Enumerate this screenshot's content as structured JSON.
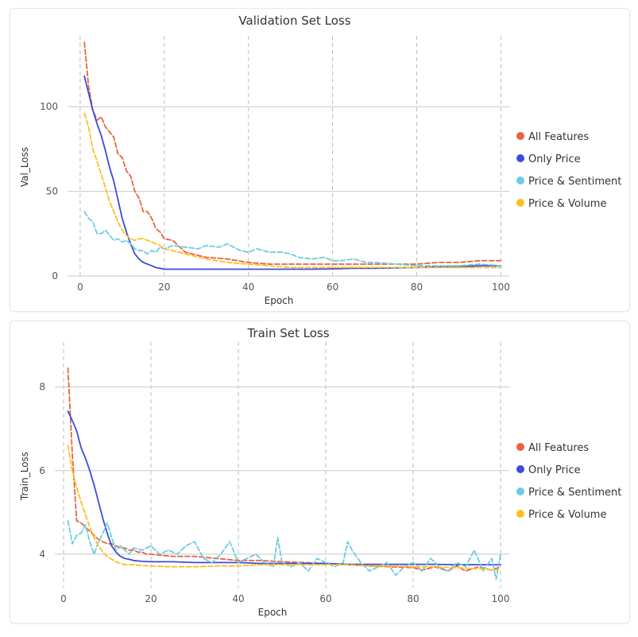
{
  "colors": {
    "all_features": "#e8633d",
    "only_price": "#3b4bdb",
    "price_sentiment": "#6ccbe3",
    "price_volume": "#fdbf21"
  },
  "chart_data": [
    {
      "type": "line",
      "title": "Validation Set Loss",
      "xlabel": "Epoch",
      "ylabel": "Val_Loss",
      "xlim": [
        -3,
        102
      ],
      "ylim": [
        0,
        140
      ],
      "xticks": [
        0,
        20,
        40,
        60,
        80,
        100
      ],
      "yticks": [
        0,
        50,
        100
      ],
      "grid": "horizontal solid, vertical dashed",
      "legend": "right",
      "series": [
        {
          "name": "All Features",
          "color": "#e8633d",
          "dash": true,
          "x": [
            1,
            2,
            3,
            4,
            5,
            6,
            7,
            8,
            9,
            10,
            11,
            12,
            13,
            14,
            15,
            16,
            17,
            18,
            19,
            20,
            22,
            25,
            30,
            35,
            40,
            45,
            50,
            55,
            60,
            65,
            70,
            75,
            80,
            85,
            90,
            95,
            100
          ],
          "y": [
            138,
            112,
            98,
            92,
            94,
            88,
            85,
            82,
            72,
            70,
            62,
            59,
            50,
            46,
            38,
            38,
            34,
            28,
            26,
            22,
            21,
            14,
            11,
            10,
            8,
            7,
            7,
            7,
            7,
            7,
            7,
            7,
            7,
            8,
            8,
            9,
            9
          ]
        },
        {
          "name": "Only Price",
          "color": "#3b4bdb",
          "dash": false,
          "x": [
            1,
            2,
            3,
            4,
            5,
            6,
            7,
            8,
            9,
            10,
            11,
            12,
            13,
            14,
            15,
            16,
            17,
            18,
            19,
            20,
            22,
            25,
            30,
            35,
            40,
            45,
            50,
            55,
            60,
            65,
            70,
            75,
            80,
            85,
            90,
            95,
            100
          ],
          "y": [
            118,
            108,
            98,
            90,
            83,
            74,
            64,
            56,
            45,
            34,
            26,
            19,
            13,
            10,
            8,
            7,
            6,
            5,
            4.5,
            4,
            4,
            4,
            4,
            4,
            4,
            4,
            4,
            4,
            4.2,
            4.5,
            4.5,
            4.8,
            5,
            5.3,
            5.5,
            6,
            6
          ]
        },
        {
          "name": "Price & Sentiment",
          "color": "#6ccbe3",
          "dash": true,
          "x": [
            1,
            2,
            3,
            4,
            5,
            6,
            7,
            8,
            9,
            10,
            11,
            12,
            13,
            14,
            15,
            16,
            17,
            18,
            19,
            20,
            22,
            25,
            28,
            30,
            33,
            35,
            38,
            40,
            42,
            45,
            48,
            50,
            52,
            55,
            58,
            60,
            62,
            65,
            68,
            70,
            75,
            80,
            85,
            90,
            95,
            100
          ],
          "y": [
            38,
            34,
            32,
            25,
            25,
            27,
            24,
            21,
            22,
            20,
            21,
            19,
            16,
            15,
            15,
            13,
            15,
            14,
            17,
            16,
            18,
            17,
            16,
            18,
            17,
            19,
            15,
            14,
            16,
            14,
            14,
            13,
            11,
            10,
            11,
            9,
            9,
            10,
            8,
            8,
            7,
            6,
            6,
            6,
            7,
            6
          ],
          "style": "jagged"
        },
        {
          "name": "Price & Volume",
          "color": "#fdbf21",
          "dash": true,
          "x": [
            1,
            2,
            3,
            4,
            5,
            6,
            7,
            8,
            9,
            10,
            11,
            12,
            13,
            14,
            15,
            16,
            17,
            18,
            19,
            20,
            22,
            25,
            30,
            35,
            40,
            45,
            50,
            55,
            60,
            65,
            70,
            75,
            80,
            85,
            90,
            95,
            100
          ],
          "y": [
            96,
            88,
            75,
            68,
            60,
            52,
            44,
            38,
            32,
            27,
            24,
            22,
            21,
            22,
            22,
            21,
            20,
            19,
            18,
            16,
            15,
            13,
            10,
            8,
            7,
            6,
            5,
            5,
            5,
            5,
            5,
            5,
            5,
            5,
            5,
            5,
            5
          ]
        }
      ]
    },
    {
      "type": "line",
      "title": "Train Set Loss",
      "xlabel": "Epoch",
      "ylabel": "Train_Loss",
      "xlim": [
        -2,
        102
      ],
      "ylim": [
        3.2,
        9.0
      ],
      "xticks": [
        0,
        20,
        40,
        60,
        80,
        100
      ],
      "yticks": [
        4,
        6,
        8
      ],
      "grid": "horizontal solid, vertical dashed",
      "legend": "right",
      "series": [
        {
          "name": "All Features",
          "color": "#e8633d",
          "dash": true,
          "x": [
            1,
            2,
            3,
            4,
            5,
            6,
            7,
            8,
            9,
            10,
            11,
            12,
            13,
            14,
            15,
            16,
            17,
            18,
            19,
            20,
            25,
            30,
            35,
            40,
            45,
            50,
            55,
            60,
            65,
            70,
            75,
            80,
            82,
            85,
            88,
            90,
            92,
            95,
            98,
            100
          ],
          "y": [
            8.45,
            6.4,
            4.8,
            4.75,
            4.65,
            4.55,
            4.45,
            4.35,
            4.3,
            4.25,
            4.25,
            4.2,
            4.15,
            4.15,
            4.1,
            4.1,
            4.05,
            4.05,
            4.0,
            4.0,
            3.95,
            3.95,
            3.9,
            3.85,
            3.85,
            3.82,
            3.8,
            3.78,
            3.75,
            3.72,
            3.7,
            3.68,
            3.62,
            3.7,
            3.6,
            3.72,
            3.6,
            3.7,
            3.62,
            3.7
          ]
        },
        {
          "name": "Only Price",
          "color": "#3b4bdb",
          "dash": false,
          "x": [
            1,
            2,
            3,
            4,
            5,
            6,
            7,
            8,
            9,
            10,
            11,
            12,
            13,
            14,
            15,
            16,
            18,
            20,
            25,
            30,
            35,
            40,
            45,
            50,
            55,
            60,
            65,
            70,
            75,
            80,
            85,
            90,
            95,
            100
          ],
          "y": [
            7.42,
            7.2,
            6.95,
            6.55,
            6.3,
            6.0,
            5.65,
            5.25,
            4.85,
            4.5,
            4.2,
            4.05,
            3.95,
            3.9,
            3.88,
            3.85,
            3.83,
            3.82,
            3.82,
            3.8,
            3.8,
            3.8,
            3.78,
            3.78,
            3.78,
            3.78,
            3.76,
            3.76,
            3.76,
            3.76,
            3.76,
            3.75,
            3.75,
            3.75
          ]
        },
        {
          "name": "Price & Sentiment",
          "color": "#6ccbe3",
          "dash": true,
          "x": [
            1,
            2,
            3,
            4,
            5,
            6,
            7,
            8,
            9,
            10,
            11,
            12,
            13,
            14,
            15,
            16,
            18,
            20,
            22,
            24,
            26,
            28,
            30,
            32,
            34,
            36,
            38,
            40,
            42,
            44,
            46,
            48,
            49,
            50,
            52,
            54,
            56,
            58,
            60,
            62,
            64,
            65,
            66,
            68,
            70,
            72,
            74,
            76,
            78,
            80,
            82,
            84,
            86,
            88,
            90,
            92,
            94,
            96,
            98,
            99,
            100
          ],
          "y": [
            4.8,
            4.25,
            4.45,
            4.5,
            4.7,
            4.3,
            4.0,
            4.3,
            4.5,
            4.75,
            4.4,
            4.1,
            4.2,
            4.1,
            4.0,
            4.15,
            4.1,
            4.2,
            4.0,
            4.1,
            4.0,
            4.2,
            4.3,
            3.9,
            3.8,
            4.0,
            4.3,
            3.8,
            3.9,
            4.0,
            3.8,
            3.7,
            4.4,
            3.8,
            3.7,
            3.8,
            3.6,
            3.9,
            3.8,
            3.7,
            3.8,
            4.3,
            4.1,
            3.8,
            3.6,
            3.7,
            3.8,
            3.5,
            3.7,
            3.8,
            3.6,
            3.9,
            3.7,
            3.6,
            3.8,
            3.7,
            4.1,
            3.6,
            3.9,
            3.4,
            4.0
          ]
        },
        {
          "name": "Price & Volume",
          "color": "#fdbf21",
          "dash": true,
          "x": [
            1,
            2,
            3,
            4,
            5,
            6,
            7,
            8,
            9,
            10,
            11,
            12,
            13,
            14,
            15,
            16,
            18,
            20,
            25,
            30,
            35,
            40,
            45,
            50,
            55,
            60,
            65,
            70,
            75,
            80,
            85,
            90,
            95,
            100
          ],
          "y": [
            6.6,
            6.0,
            5.6,
            5.25,
            4.95,
            4.65,
            4.4,
            4.2,
            4.05,
            3.95,
            3.88,
            3.82,
            3.78,
            3.75,
            3.75,
            3.75,
            3.73,
            3.72,
            3.7,
            3.7,
            3.72,
            3.72,
            3.75,
            3.75,
            3.75,
            3.75,
            3.75,
            3.72,
            3.72,
            3.7,
            3.7,
            3.68,
            3.65,
            3.62
          ]
        }
      ]
    }
  ]
}
